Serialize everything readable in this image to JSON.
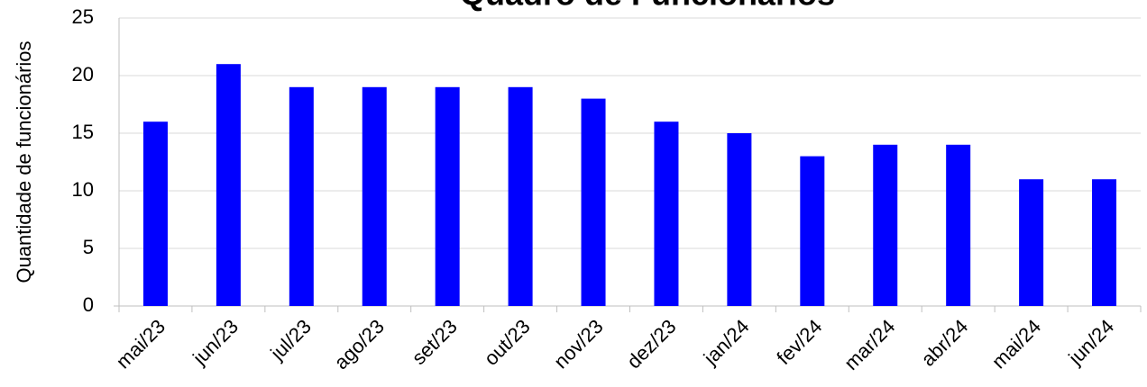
{
  "chart_data": {
    "type": "bar",
    "title": "Quadro de Funcionários",
    "y_label": "Quantidade de funcionários",
    "categories": [
      "mai/23",
      "jun/23",
      "jul/23",
      "ago/23",
      "set/23",
      "out/23",
      "nov/23",
      "dez/23",
      "jan/24",
      "fev/24",
      "mar/24",
      "abr/24",
      "mai/24",
      "jun/24"
    ],
    "values": [
      16,
      21,
      19,
      19,
      19,
      19,
      18,
      16,
      15,
      13,
      14,
      14,
      11,
      11
    ],
    "color": "#0000ff",
    "ylim": [
      0,
      25
    ],
    "yticks": [
      0,
      5,
      10,
      15,
      20,
      25
    ],
    "grid": true
  }
}
